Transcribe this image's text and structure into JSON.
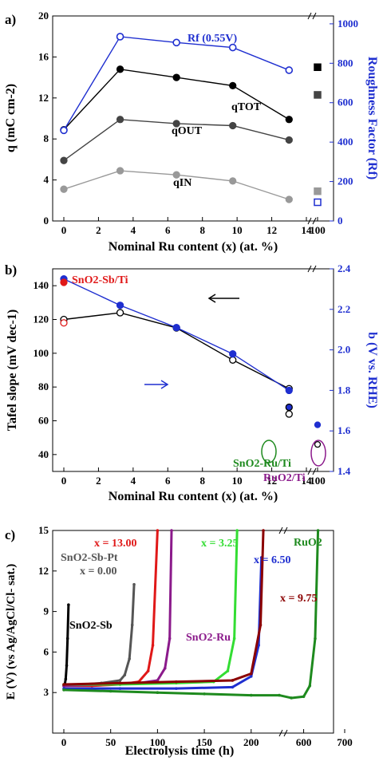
{
  "panels": [
    {
      "id": "a",
      "panel_label": "a)",
      "xlabel": "Nominal Ru content (x) (at. %)",
      "ylabel_left": "q (mC cm-2)",
      "ylabel_right": "Roughness Factor (Rf)",
      "annotations": {
        "q_tot": "qTOT",
        "q_out": "qOUT",
        "q_in": "qIN",
        "rf": "Rf (0.55V)"
      },
      "x_ticks": [
        "0",
        "2",
        "4",
        "6",
        "8",
        "10",
        "12",
        "14",
        "100"
      ],
      "y_left_ticks": [
        "0",
        "4",
        "8",
        "12",
        "16",
        "20"
      ],
      "y_right_ticks": [
        "0",
        "200",
        "400",
        "600",
        "800",
        "1000"
      ]
    },
    {
      "id": "b",
      "panel_label": "b)",
      "xlabel": "Nominal Ru content (x) (at. %)",
      "ylabel_left": "Tafel slope (mV dec-1)",
      "ylabel_right": "b (V vs. RHE)",
      "annotations": {
        "sb": "SnO2-Sb/Ti",
        "ru": "SnO2-Ru/Ti",
        "ruo2": "RuO2/Ti"
      },
      "x_ticks": [
        "0",
        "2",
        "4",
        "6",
        "8",
        "10",
        "12",
        "14",
        "100"
      ],
      "y_left_ticks": [
        "40",
        "60",
        "80",
        "100",
        "120",
        "140"
      ],
      "y_right_ticks": [
        "1.4",
        "1.6",
        "1.8",
        "2.0",
        "2.2",
        "2.4"
      ]
    },
    {
      "id": "c",
      "panel_label": "c)",
      "xlabel": "Electrolysis time (h)",
      "ylabel": "E (V) (vs Ag/AgCl/Cl- sat.)",
      "annotations": {
        "x1300": "x = 13.00",
        "x325": "x = 3.25",
        "x650": "x = 6.50",
        "x975": "x = 9.75",
        "ruo2": "RuO2",
        "sbpt": "SnO2-Sb-Pt",
        "x000": "x = 0.00",
        "sb": "SnO2-Sb",
        "snru": "SnO2-Ru"
      },
      "x_ticks": [
        "0",
        "50",
        "100",
        "150",
        "200",
        "600",
        "700"
      ],
      "y_ticks": [
        "3",
        "6",
        "9",
        "12",
        "15"
      ]
    }
  ],
  "chart_data": [
    {
      "type": "line",
      "title": "a)",
      "xlabel": "Nominal Ru content (x) (at. %)",
      "ylabel": "q (mC cm-2)",
      "ylabel_right": "Roughness Factor (Rf)",
      "x": [
        0,
        3.25,
        6.5,
        9.75,
        13.0
      ],
      "xlim": [
        -1,
        15
      ],
      "ylim": [
        0,
        20
      ],
      "ylim_right": [
        0,
        1040
      ],
      "series": [
        {
          "name": "qTOT",
          "axis": "left",
          "color": "#000000",
          "values": [
            8.9,
            14.8,
            14.0,
            13.2,
            9.9
          ],
          "at_100": 15.0
        },
        {
          "name": "qOUT",
          "axis": "left",
          "color": "#444444",
          "values": [
            5.9,
            9.9,
            9.5,
            9.3,
            7.9
          ],
          "at_100": 12.3
        },
        {
          "name": "qIN",
          "axis": "left",
          "color": "#999999",
          "values": [
            3.1,
            4.9,
            4.5,
            3.9,
            2.1
          ],
          "at_100": 2.9
        },
        {
          "name": "Rf (0.55V)",
          "axis": "right",
          "color": "#1f2fd0",
          "values": [
            460,
            935,
            905,
            880,
            765
          ],
          "at_100": 95
        }
      ]
    },
    {
      "type": "line",
      "title": "b)",
      "xlabel": "Nominal Ru content (x) (at. %)",
      "ylabel": "Tafel slope (mV dec-1)",
      "ylabel_right": "b (V vs. RHE)",
      "x": [
        0,
        3.25,
        6.5,
        9.75,
        13.0
      ],
      "xlim": [
        -1,
        15
      ],
      "ylim": [
        30,
        150
      ],
      "ylim_right": [
        1.4,
        2.4
      ],
      "series": [
        {
          "name": "Tafel slope",
          "axis": "left",
          "color": "#000000",
          "values": [
            120,
            124,
            115,
            96,
            79
          ],
          "at_100": 46
        },
        {
          "name": "b",
          "axis": "right",
          "color": "#1f2fd0",
          "values": [
            2.35,
            2.22,
            2.11,
            1.98,
            1.8
          ],
          "at_100": 1.63
        }
      ],
      "extra_points": [
        {
          "label": "SnO2-Sb/Ti filled",
          "x": 0,
          "y": 142,
          "axis": "left"
        },
        {
          "label": "SnO2-Sb/Ti open",
          "x": 0,
          "y": 118,
          "axis": "left"
        },
        {
          "label": "SnO2-Ru/Ti filled",
          "x": 13.0,
          "y": 68,
          "axis": "left"
        },
        {
          "label": "SnO2-Ru/Ti open",
          "x": 13.0,
          "y": 64,
          "axis": "left"
        }
      ]
    },
    {
      "type": "line",
      "title": "c)",
      "xlabel": "Electrolysis time (h)",
      "ylabel": "E (V) (vs Ag/AgCl/Cl- sat.)",
      "ylim": [
        0,
        15
      ],
      "series": [
        {
          "name": "SnO2-Sb",
          "color": "#000000",
          "x": [
            0,
            1,
            2,
            3,
            4,
            5
          ],
          "values": [
            3.5,
            3.6,
            4.0,
            5.0,
            7.0,
            9.5
          ]
        },
        {
          "name": "SnO2-Sb-Pt x = 0.00",
          "color": "#555555",
          "x": [
            0,
            20,
            40,
            60,
            65,
            70,
            73,
            75
          ],
          "values": [
            3.5,
            3.6,
            3.7,
            3.9,
            4.3,
            5.5,
            8.0,
            11.0
          ]
        },
        {
          "name": "x = 13.00",
          "color": "#e01818",
          "x": [
            0,
            30,
            60,
            80,
            90,
            95,
            100
          ],
          "values": [
            3.5,
            3.5,
            3.6,
            3.8,
            4.6,
            6.5,
            15.0
          ]
        },
        {
          "name": "SnO2-Ru",
          "color": "#8b1a8b",
          "x": [
            0,
            40,
            80,
            100,
            108,
            113,
            115
          ],
          "values": [
            3.5,
            3.6,
            3.7,
            3.9,
            4.8,
            7.0,
            15.0
          ]
        },
        {
          "name": "x = 3.25",
          "color": "#33dd33",
          "x": [
            0,
            60,
            120,
            160,
            175,
            182,
            185
          ],
          "values": [
            3.6,
            3.6,
            3.7,
            3.8,
            4.6,
            7.0,
            15.0
          ]
        },
        {
          "name": "x = 6.50",
          "color": "#1f2fd0",
          "x": [
            0,
            60,
            120,
            180,
            200,
            208,
            211
          ],
          "values": [
            3.3,
            3.3,
            3.3,
            3.4,
            4.2,
            6.5,
            13.0
          ]
        },
        {
          "name": "x = 9.75",
          "color": "#8b0000",
          "x": [
            0,
            60,
            120,
            180,
            200,
            210,
            213
          ],
          "values": [
            3.6,
            3.7,
            3.8,
            3.9,
            4.4,
            8.0,
            15.0
          ]
        },
        {
          "name": "RuO2",
          "color": "#1e8a1e",
          "x": [
            0,
            50,
            100,
            150,
            200,
            230,
            570,
            600,
            615,
            628,
            635
          ],
          "values": [
            3.2,
            3.1,
            3.0,
            2.9,
            2.8,
            2.8,
            2.6,
            2.7,
            3.5,
            7.0,
            15.0
          ]
        }
      ]
    }
  ]
}
